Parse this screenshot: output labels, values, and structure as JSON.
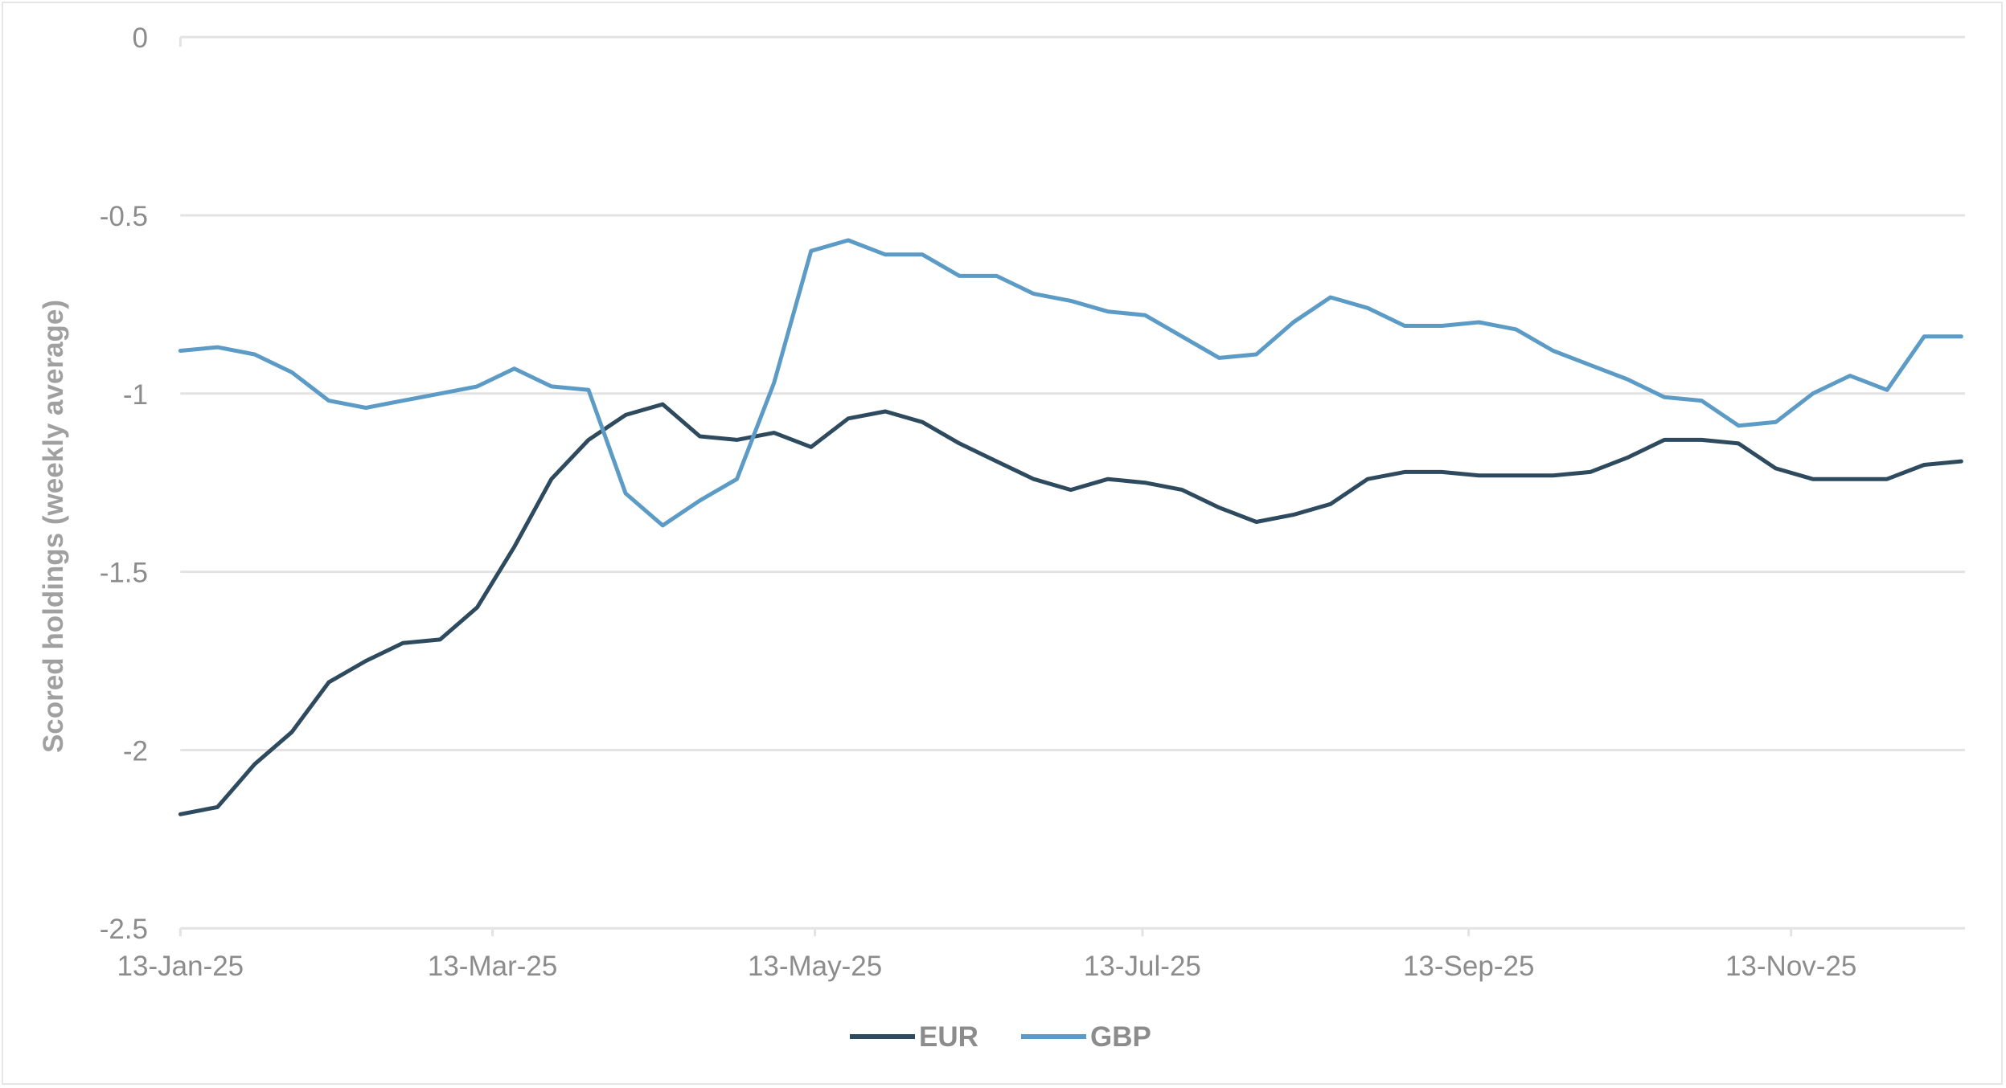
{
  "chart_data": {
    "type": "line",
    "title": "",
    "xlabel": "",
    "ylabel": "Scored holdings (weekly average)",
    "ylim": [
      -2.5,
      0
    ],
    "yticks": [
      "0",
      "-0.5",
      "-1",
      "-1.5",
      "-2",
      "-2.5"
    ],
    "xtick_labels": [
      "13-Jan-25",
      "13-Mar-25",
      "13-May-25",
      "13-Jul-25",
      "13-Sep-25",
      "13-Nov-25"
    ],
    "grid": true,
    "legend_position": "bottom",
    "series": [
      {
        "name": "EUR",
        "color": "#2e4a5e",
        "values": [
          -2.18,
          -2.16,
          -2.04,
          -1.95,
          -1.81,
          -1.75,
          -1.7,
          -1.69,
          -1.6,
          -1.43,
          -1.24,
          -1.13,
          -1.06,
          -1.03,
          -1.12,
          -1.13,
          -1.11,
          -1.15,
          -1.07,
          -1.05,
          -1.08,
          -1.14,
          -1.19,
          -1.24,
          -1.27,
          -1.24,
          -1.25,
          -1.27,
          -1.32,
          -1.36,
          -1.34,
          -1.31,
          -1.24,
          -1.22,
          -1.22,
          -1.23,
          -1.23,
          -1.23,
          -1.22,
          -1.18,
          -1.13,
          -1.13,
          -1.14,
          -1.21,
          -1.24,
          -1.24,
          -1.24,
          -1.2,
          -1.19
        ]
      },
      {
        "name": "GBP",
        "color": "#5b9bc6",
        "values": [
          -0.88,
          -0.87,
          -0.89,
          -0.94,
          -1.02,
          -1.04,
          -1.02,
          -1.0,
          -0.98,
          -0.93,
          -0.98,
          -0.99,
          -1.28,
          -1.37,
          -1.3,
          -1.24,
          -0.97,
          -0.6,
          -0.57,
          -0.61,
          -0.61,
          -0.67,
          -0.67,
          -0.72,
          -0.74,
          -0.77,
          -0.78,
          -0.84,
          -0.9,
          -0.89,
          -0.8,
          -0.73,
          -0.76,
          -0.81,
          -0.81,
          -0.8,
          -0.82,
          -0.88,
          -0.92,
          -0.96,
          -1.01,
          -1.02,
          -1.09,
          -1.08,
          -1.0,
          -0.95,
          -0.99,
          -0.84,
          -0.84
        ]
      }
    ]
  },
  "legend": {
    "eur": "EUR",
    "gbp": "GBP"
  }
}
